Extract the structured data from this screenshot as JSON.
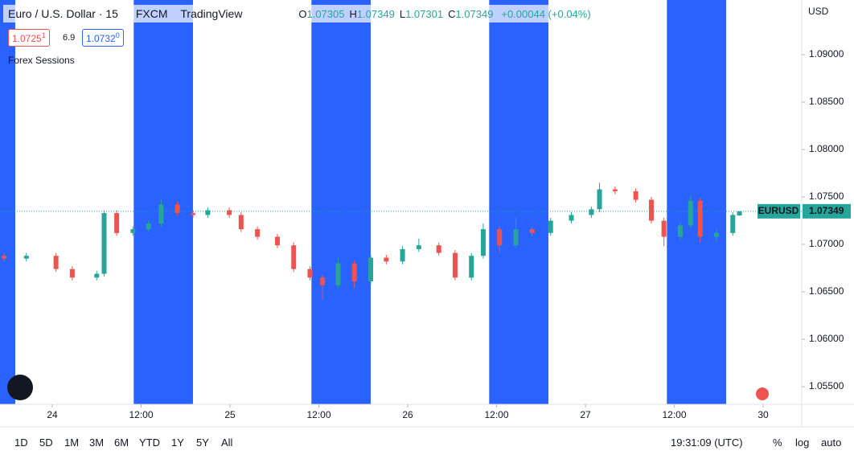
{
  "chart_data": {
    "type": "candlestick",
    "title": "Euro / U.S. Dollar · 15",
    "exchange": "FXCM",
    "brand": "TradingView",
    "ohlc_legend": [
      {
        "key": "O",
        "value": "1.07305"
      },
      {
        "key": "H",
        "value": "1.07349"
      },
      {
        "key": "L",
        "value": "1.07301"
      },
      {
        "key": "C",
        "value": "1.07349"
      }
    ],
    "change": "+0.00044 (+0.04%)",
    "bid": {
      "price": "1.0725",
      "pip": "1"
    },
    "spread": "6.9",
    "ask": {
      "price": "1.0732",
      "pip": "0"
    },
    "indicator": "Forex Sessions",
    "session_color": "#2962ff",
    "sessions": [
      [
        -13,
        -5
      ],
      [
        11,
        19
      ],
      [
        35,
        43
      ],
      [
        59,
        67
      ],
      [
        83,
        91
      ]
    ],
    "currency": "USD",
    "symbol_tag": "EURUSD",
    "last_price": {
      "value": 1.07349,
      "label": "1.07349"
    },
    "up_color": "#26a69a",
    "down_color": "#ef5350",
    "x": [
      -6.5,
      -3.5,
      0.5,
      2.7,
      6,
      7,
      8.7,
      10.9,
      13,
      14.7,
      16.9,
      19,
      21,
      23.9,
      25.5,
      27.7,
      30.4,
      32.6,
      34.8,
      36.5,
      38.6,
      40.8,
      43,
      45.1,
      47.3,
      49.5,
      52.2,
      54.4,
      56.6,
      58.2,
      60.4,
      62.6,
      64.8,
      67.3,
      70.1,
      72.8,
      73.9,
      76,
      78.8,
      80.9,
      82.6,
      84.8,
      86.2,
      87.5,
      89.7,
      91.9,
      92.8
    ],
    "open": [
      1.0688,
      1.0685,
      1.0688,
      1.0674,
      1.0665,
      1.0669,
      1.0733,
      1.0712,
      1.0716,
      1.0722,
      1.0742,
      1.0733,
      1.0731,
      1.0736,
      1.0731,
      1.0716,
      1.0708,
      1.0699,
      1.0674,
      1.0665,
      1.0657,
      1.068,
      1.0661,
      1.0686,
      1.0682,
      1.0695,
      1.0699,
      1.0691,
      1.0665,
      1.0688,
      1.0716,
      1.0699,
      1.0716,
      1.0712,
      1.0725,
      1.0731,
      1.0737,
      1.0758,
      1.0756,
      1.0747,
      1.0725,
      1.0708,
      1.072,
      1.0746,
      1.0708,
      1.0712,
      1.07305
    ],
    "high": [
      1.0691,
      1.0691,
      1.0691,
      1.0677,
      1.0672,
      1.0736,
      1.0736,
      1.0719,
      1.0725,
      1.0748,
      1.0745,
      1.0736,
      1.0739,
      1.0739,
      1.0734,
      1.0719,
      1.0711,
      1.0702,
      1.0677,
      1.0668,
      1.0686,
      1.0683,
      1.0689,
      1.0689,
      1.0698,
      1.0706,
      1.0702,
      1.0694,
      1.0691,
      1.0722,
      1.0719,
      1.0728,
      1.0719,
      1.0728,
      1.0734,
      1.074,
      1.0765,
      1.0761,
      1.0759,
      1.075,
      1.0728,
      1.0723,
      1.0752,
      1.0749,
      1.0715,
      1.0734,
      1.07349
    ],
    "low": [
      1.0682,
      1.0682,
      1.0671,
      1.0662,
      1.0662,
      1.0666,
      1.0709,
      1.0709,
      1.0713,
      1.0719,
      1.073,
      1.0728,
      1.0728,
      1.0728,
      1.0713,
      1.0705,
      1.0696,
      1.0671,
      1.0662,
      1.0642,
      1.0654,
      1.0654,
      1.0658,
      1.0679,
      1.0679,
      1.0692,
      1.0688,
      1.0662,
      1.0662,
      1.0685,
      1.0692,
      1.0696,
      1.0709,
      1.0709,
      1.0722,
      1.0728,
      1.0734,
      1.0753,
      1.0744,
      1.0722,
      1.0698,
      1.0705,
      1.0717,
      1.0702,
      1.0703,
      1.0709,
      1.07301
    ],
    "close": [
      1.0685,
      1.0688,
      1.0674,
      1.0665,
      1.0669,
      1.0733,
      1.0712,
      1.0716,
      1.0722,
      1.0742,
      1.0733,
      1.0731,
      1.0736,
      1.0731,
      1.0716,
      1.0708,
      1.0699,
      1.0674,
      1.0665,
      1.0657,
      1.068,
      1.0661,
      1.0686,
      1.0682,
      1.0695,
      1.0699,
      1.0691,
      1.0665,
      1.0688,
      1.0716,
      1.0699,
      1.0716,
      1.0712,
      1.0725,
      1.0731,
      1.0737,
      1.0758,
      1.0756,
      1.0747,
      1.0725,
      1.0708,
      1.072,
      1.0746,
      1.0708,
      1.0712,
      1.0731,
      1.07349
    ],
    "xlim": [
      -7.06,
      101.21
    ],
    "xticks": [
      {
        "value": 0,
        "label": "24"
      },
      {
        "value": 12,
        "label": "12:00"
      },
      {
        "value": 24,
        "label": "25"
      },
      {
        "value": 36,
        "label": "12:00"
      },
      {
        "value": 48,
        "label": "26"
      },
      {
        "value": 60,
        "label": "12:00"
      },
      {
        "value": 72,
        "label": "27"
      },
      {
        "value": 84,
        "label": "12:00"
      },
      {
        "value": 96,
        "label": "30"
      }
    ],
    "ylim": [
      1.05314,
      1.09576
    ],
    "yticks": [
      {
        "value": 1.09,
        "label": "1.09000"
      },
      {
        "value": 1.085,
        "label": "1.08500"
      },
      {
        "value": 1.08,
        "label": "1.08000"
      },
      {
        "value": 1.075,
        "label": "1.07500"
      },
      {
        "value": 1.07,
        "label": "1.07000"
      },
      {
        "value": 1.065,
        "label": "1.06500"
      },
      {
        "value": 1.06,
        "label": "1.06000"
      },
      {
        "value": 1.055,
        "label": "1.05500"
      }
    ],
    "ranges": [
      "1D",
      "5D",
      "1M",
      "3M",
      "6M",
      "YTD",
      "1Y",
      "5Y",
      "All"
    ],
    "clock": "19:31:09 (UTC)",
    "toggles": [
      "%",
      "log",
      "auto"
    ]
  }
}
